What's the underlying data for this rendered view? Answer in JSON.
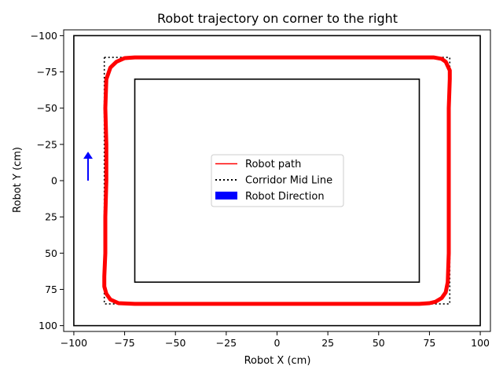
{
  "chart_data": {
    "type": "line",
    "title": "Robot trajectory on corner to the right",
    "xlabel": "Robot X (cm)",
    "ylabel": "Robot Y (cm)",
    "xlim": [
      -105,
      105
    ],
    "ylim": [
      104,
      -104
    ],
    "y_inverted": true,
    "xticks": [
      -100,
      -75,
      -50,
      -25,
      0,
      25,
      50,
      75,
      100
    ],
    "yticks": [
      -100,
      -75,
      -50,
      -25,
      0,
      25,
      50,
      75,
      100
    ],
    "xtick_labels": [
      "−100",
      "−75",
      "−50",
      "−25",
      "0",
      "25",
      "50",
      "75",
      "100"
    ],
    "ytick_labels": [
      "−100",
      "−75",
      "−50",
      "−25",
      "0",
      "25",
      "50",
      "75",
      "100"
    ],
    "grid": false,
    "legend_position": "center",
    "walls": {
      "outer": {
        "x": [
          -100,
          100
        ],
        "y": [
          -100,
          100
        ],
        "color": "#000000"
      },
      "inner": {
        "x": [
          -70,
          70
        ],
        "y": [
          -70,
          70
        ],
        "color": "#000000"
      }
    },
    "series": [
      {
        "name": "Robot path",
        "style": "solid",
        "color": "#ff0000",
        "x": [
          -84,
          -84,
          -84.5,
          -84,
          -82,
          -79,
          -75,
          -70,
          -50,
          -25,
          0,
          25,
          50,
          70,
          77,
          81,
          83,
          84,
          85,
          85,
          84.5,
          84.5,
          84.5,
          84.5,
          84.5,
          84,
          83,
          81,
          78,
          75,
          70,
          50,
          25,
          0,
          -25,
          -50,
          -70,
          -78,
          -82,
          -84,
          -85,
          -85,
          -84.5,
          -84.5,
          -84
        ],
        "y": [
          0,
          -25,
          -50,
          -70,
          -78,
          -82,
          -84.5,
          -85,
          -85,
          -85,
          -85,
          -85,
          -85,
          -85,
          -85,
          -84,
          -82,
          -79,
          -76,
          -70,
          -50,
          -25,
          0,
          25,
          50,
          70,
          77,
          81,
          83.5,
          84.5,
          85,
          85,
          85,
          85,
          85,
          85,
          85,
          84.5,
          82,
          78,
          73,
          66,
          50,
          25,
          0
        ]
      },
      {
        "name": "Corridor Mid Line",
        "style": "dotted",
        "color": "#000000",
        "x": [
          -85,
          85,
          85,
          -85,
          -85
        ],
        "y": [
          -85,
          -85,
          85,
          85,
          -85
        ]
      }
    ],
    "arrow": {
      "name": "Robot Direction",
      "color": "#0000ff",
      "x": -93,
      "y": 0,
      "dx": 0,
      "dy": -20
    }
  }
}
